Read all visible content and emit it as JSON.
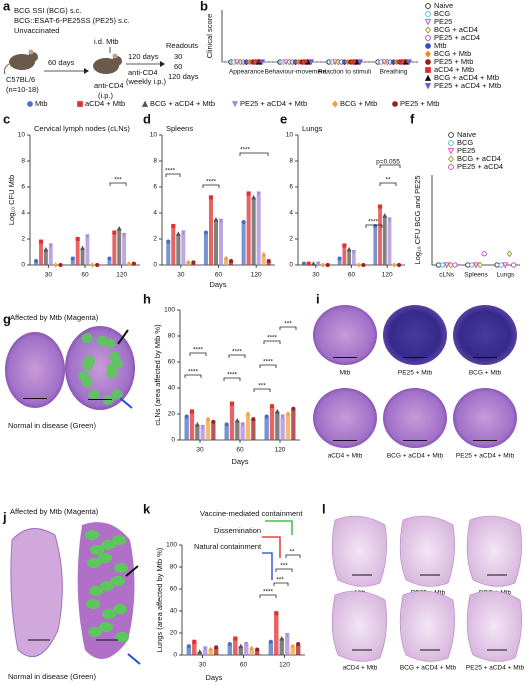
{
  "panel_a": {
    "label": "a",
    "groups": [
      "BCG SSI (BCG) s.c.",
      "BCG::ESAT-6-PE25SS (PE25) s.c.",
      "Unvaccinated"
    ],
    "strain": "C57BL/6",
    "n": "(n=10-18)",
    "interval1": "60 days",
    "infection": "i.d. Mtb",
    "treatment": "anti-CD4",
    "treatment_route": "(i.p.)",
    "interval2": "120 days",
    "treatment2": "anti-CD4",
    "treatment2_route": "(weekly i.p.)",
    "readouts_title": "Readouts",
    "readouts": [
      "30",
      "60",
      "120 days"
    ]
  },
  "panel_b": {
    "label": "b",
    "type": "dot",
    "ylabel": "Clinical score",
    "categories": [
      "Appearance",
      "Behaviour-movement",
      "Reaction to stimuli",
      "Breathing"
    ],
    "ylim": [
      0,
      3
    ],
    "series": [
      {
        "name": "Naive",
        "color": "#222222",
        "marker": "circle",
        "filled": false,
        "values": [
          0,
          0,
          0,
          0
        ]
      },
      {
        "name": "BCG",
        "color": "#3cb8c8",
        "marker": "circle",
        "filled": false,
        "values": [
          0,
          0,
          0,
          0
        ]
      },
      {
        "name": "PE25",
        "color": "#e040c0",
        "marker": "tridown",
        "filled": false,
        "values": [
          0,
          0,
          0,
          0
        ]
      },
      {
        "name": "BCG + aCD4",
        "color": "#a09020",
        "marker": "diamond",
        "filled": false,
        "values": [
          0,
          0,
          0,
          0
        ]
      },
      {
        "name": "PE25 + aCD4",
        "color": "#9040c0",
        "marker": "circle",
        "filled": false,
        "values": [
          0,
          0,
          0,
          0
        ]
      },
      {
        "name": "Mtb",
        "color": "#3050c0",
        "marker": "circle",
        "filled": true,
        "values": [
          0,
          0,
          0,
          0
        ]
      },
      {
        "name": "BCG + Mtb",
        "color": "#f08a20",
        "marker": "diamond",
        "filled": true,
        "values": [
          0,
          0,
          0,
          0
        ]
      },
      {
        "name": "PE25 + Mtb",
        "color": "#a01818",
        "marker": "circle",
        "filled": true,
        "values": [
          0,
          0,
          0,
          0
        ]
      },
      {
        "name": "aCD4 + Mtb",
        "color": "#e02828",
        "marker": "square",
        "filled": true,
        "values": [
          0,
          0,
          0,
          0
        ]
      },
      {
        "name": "BCG + aCD4 + Mtb",
        "color": "#111111",
        "marker": "triangle",
        "filled": true,
        "values": [
          0,
          0,
          0,
          0
        ]
      },
      {
        "name": "PE25 + aCD4 + Mtb",
        "color": "#8050d0",
        "marker": "tridown",
        "filled": true,
        "values": [
          0,
          0,
          0,
          0
        ]
      }
    ]
  },
  "legend_groups": [
    {
      "name": "Mtb",
      "color": "#4a6fc0",
      "marker": "circle"
    },
    {
      "name": "aCD4 + Mtb",
      "color": "#e03030",
      "marker": "square"
    },
    {
      "name": "BCG + aCD4 + Mtb",
      "color": "#555555",
      "marker": "triangle"
    },
    {
      "name": "PE25 + aCD4 + Mtb",
      "color": "#a888d8",
      "marker": "tridown"
    },
    {
      "name": "BCG + Mtb",
      "color": "#f0a040",
      "marker": "diamond"
    },
    {
      "name": "PE25 + Mtb",
      "color": "#a02020",
      "marker": "circle"
    }
  ],
  "days_label": "Days",
  "panel_c": {
    "label": "c",
    "type": "bar",
    "title": "Cervical lymph nodes (cLNs)",
    "ylabel": "Log₁₀ CFU Mtb",
    "categories": [
      "30",
      "60",
      "120"
    ],
    "ylim": [
      0,
      10
    ],
    "yticks": [
      0,
      2,
      4,
      6,
      8,
      10
    ],
    "series": [
      {
        "values": [
          0.3,
          0.5,
          0.5
        ]
      },
      {
        "values": [
          1.8,
          2.0,
          2.5
        ]
      },
      {
        "values": [
          1.2,
          1.3,
          2.8
        ]
      },
      {
        "values": [
          1.5,
          2.2,
          2.3
        ]
      },
      {
        "values": [
          0,
          0,
          0.1
        ]
      },
      {
        "values": [
          0,
          0,
          0.1
        ]
      }
    ],
    "annotations": [
      "***"
    ]
  },
  "panel_d": {
    "label": "d",
    "type": "bar",
    "title": "Spleens",
    "categories": [
      "30",
      "60",
      "120"
    ],
    "ylim": [
      0,
      10
    ],
    "yticks": [
      0,
      2,
      4,
      6,
      8,
      10
    ],
    "series": [
      {
        "values": [
          1.8,
          2.5,
          3.3
        ]
      },
      {
        "values": [
          3.0,
          5.2,
          5.5
        ]
      },
      {
        "values": [
          2.4,
          3.5,
          5.2
        ]
      },
      {
        "values": [
          2.5,
          3.4,
          5.5
        ]
      },
      {
        "values": [
          0.2,
          0.5,
          0.8
        ]
      },
      {
        "values": [
          0.2,
          0.3,
          0.3
        ]
      }
    ],
    "annotations": [
      "****",
      "****",
      "****"
    ]
  },
  "panel_e": {
    "label": "e",
    "type": "bar",
    "title": "Lungs",
    "categories": [
      "30",
      "60",
      "120"
    ],
    "ylim": [
      0,
      10
    ],
    "yticks": [
      0,
      2,
      4,
      6,
      8,
      10
    ],
    "series": [
      {
        "values": [
          0.1,
          0.5,
          3.0
        ]
      },
      {
        "values": [
          0.1,
          1.5,
          4.5
        ]
      },
      {
        "values": [
          0.1,
          1.2,
          3.8
        ]
      },
      {
        "values": [
          0.1,
          1.0,
          3.5
        ]
      },
      {
        "values": [
          0,
          0,
          0
        ]
      },
      {
        "values": [
          0,
          0,
          0
        ]
      }
    ],
    "annotations": [
      "****",
      "**",
      "p=0.055"
    ]
  },
  "panel_f": {
    "label": "f",
    "type": "dot",
    "ylabel": "Log₁₀ CFU BCG and PE25",
    "categories": [
      "cLNs",
      "Spleens",
      "Lungs"
    ],
    "ylim": [
      0,
      8
    ],
    "series": [
      {
        "name": "Naive",
        "color": "#333333",
        "marker": "circle",
        "filled": false,
        "values": [
          0,
          0,
          0
        ]
      },
      {
        "name": "BCG",
        "color": "#3cb8c8",
        "marker": "circle",
        "filled": false,
        "values": [
          0,
          0,
          0
        ]
      },
      {
        "name": "PE25",
        "color": "#e040c0",
        "marker": "tridown",
        "filled": false,
        "values": [
          0,
          0,
          0
        ]
      },
      {
        "name": "BCG + aCD4",
        "color": "#a09020",
        "marker": "diamond",
        "filled": false,
        "values": [
          0,
          0,
          1
        ]
      },
      {
        "name": "PE25 + aCD4",
        "color": "#c040d0",
        "marker": "circle",
        "filled": false,
        "values": [
          0,
          1,
          0
        ]
      }
    ]
  },
  "panel_g": {
    "label": "g",
    "title": "Affected by Mtb (Magenta)",
    "footer": "Normal in disease (Green)"
  },
  "panel_h": {
    "label": "h",
    "type": "bar",
    "ylabel": "cLNs (area affected by Mtb %)",
    "categories": [
      "30",
      "60",
      "120"
    ],
    "ylim": [
      0,
      100
    ],
    "yticks": [
      0,
      20,
      40,
      60,
      80,
      100
    ],
    "series": [
      {
        "values": [
          18,
          12,
          18
        ]
      },
      {
        "values": [
          22,
          28,
          26
        ]
      },
      {
        "values": [
          12,
          15,
          22
        ]
      },
      {
        "values": [
          10,
          12,
          18
        ]
      },
      {
        "values": [
          16,
          20,
          20
        ]
      },
      {
        "values": [
          14,
          16,
          24
        ]
      }
    ],
    "annotations": [
      "****",
      "****",
      "****",
      "****",
      "***",
      "****",
      "****",
      "***"
    ]
  },
  "panel_i": {
    "label": "i",
    "captions": [
      "Mtb",
      "PE25 + Mtb",
      "BCG + Mtb",
      "aCD4 + Mtb",
      "BCG + aCD4 + Mtb",
      "PE25 + aCD4 + Mtb"
    ]
  },
  "panel_j": {
    "label": "j",
    "title": "Affected by Mtb (Magenta)",
    "footer": "Normal in disease (Green)"
  },
  "panel_k": {
    "label": "k",
    "type": "bar",
    "ylabel": "Lungs (area affected by Mtb %)",
    "categories": [
      "30",
      "60",
      "120"
    ],
    "ylim": [
      0,
      100
    ],
    "yticks": [
      0,
      20,
      40,
      60,
      80,
      100
    ],
    "series": [
      {
        "values": [
          8,
          10,
          12
        ]
      },
      {
        "values": [
          12,
          15,
          38
        ]
      },
      {
        "values": [
          3,
          8,
          15
        ]
      },
      {
        "values": [
          6,
          10,
          18
        ]
      },
      {
        "values": [
          5,
          6,
          8
        ]
      },
      {
        "values": [
          7,
          5,
          10
        ]
      }
    ],
    "annotations": [
      "Vaccine-mediated containment",
      "Dissemination",
      "Natural containment",
      "****",
      "***",
      "***",
      "**"
    ]
  },
  "panel_l": {
    "label": "l",
    "captions": [
      "Mtb",
      "PE25 + Mtb",
      "BCG + Mtb",
      "aCD4 + Mtb",
      "BCG + aCD4 + Mtb",
      "PE25 + aCD4 + Mtb"
    ]
  }
}
